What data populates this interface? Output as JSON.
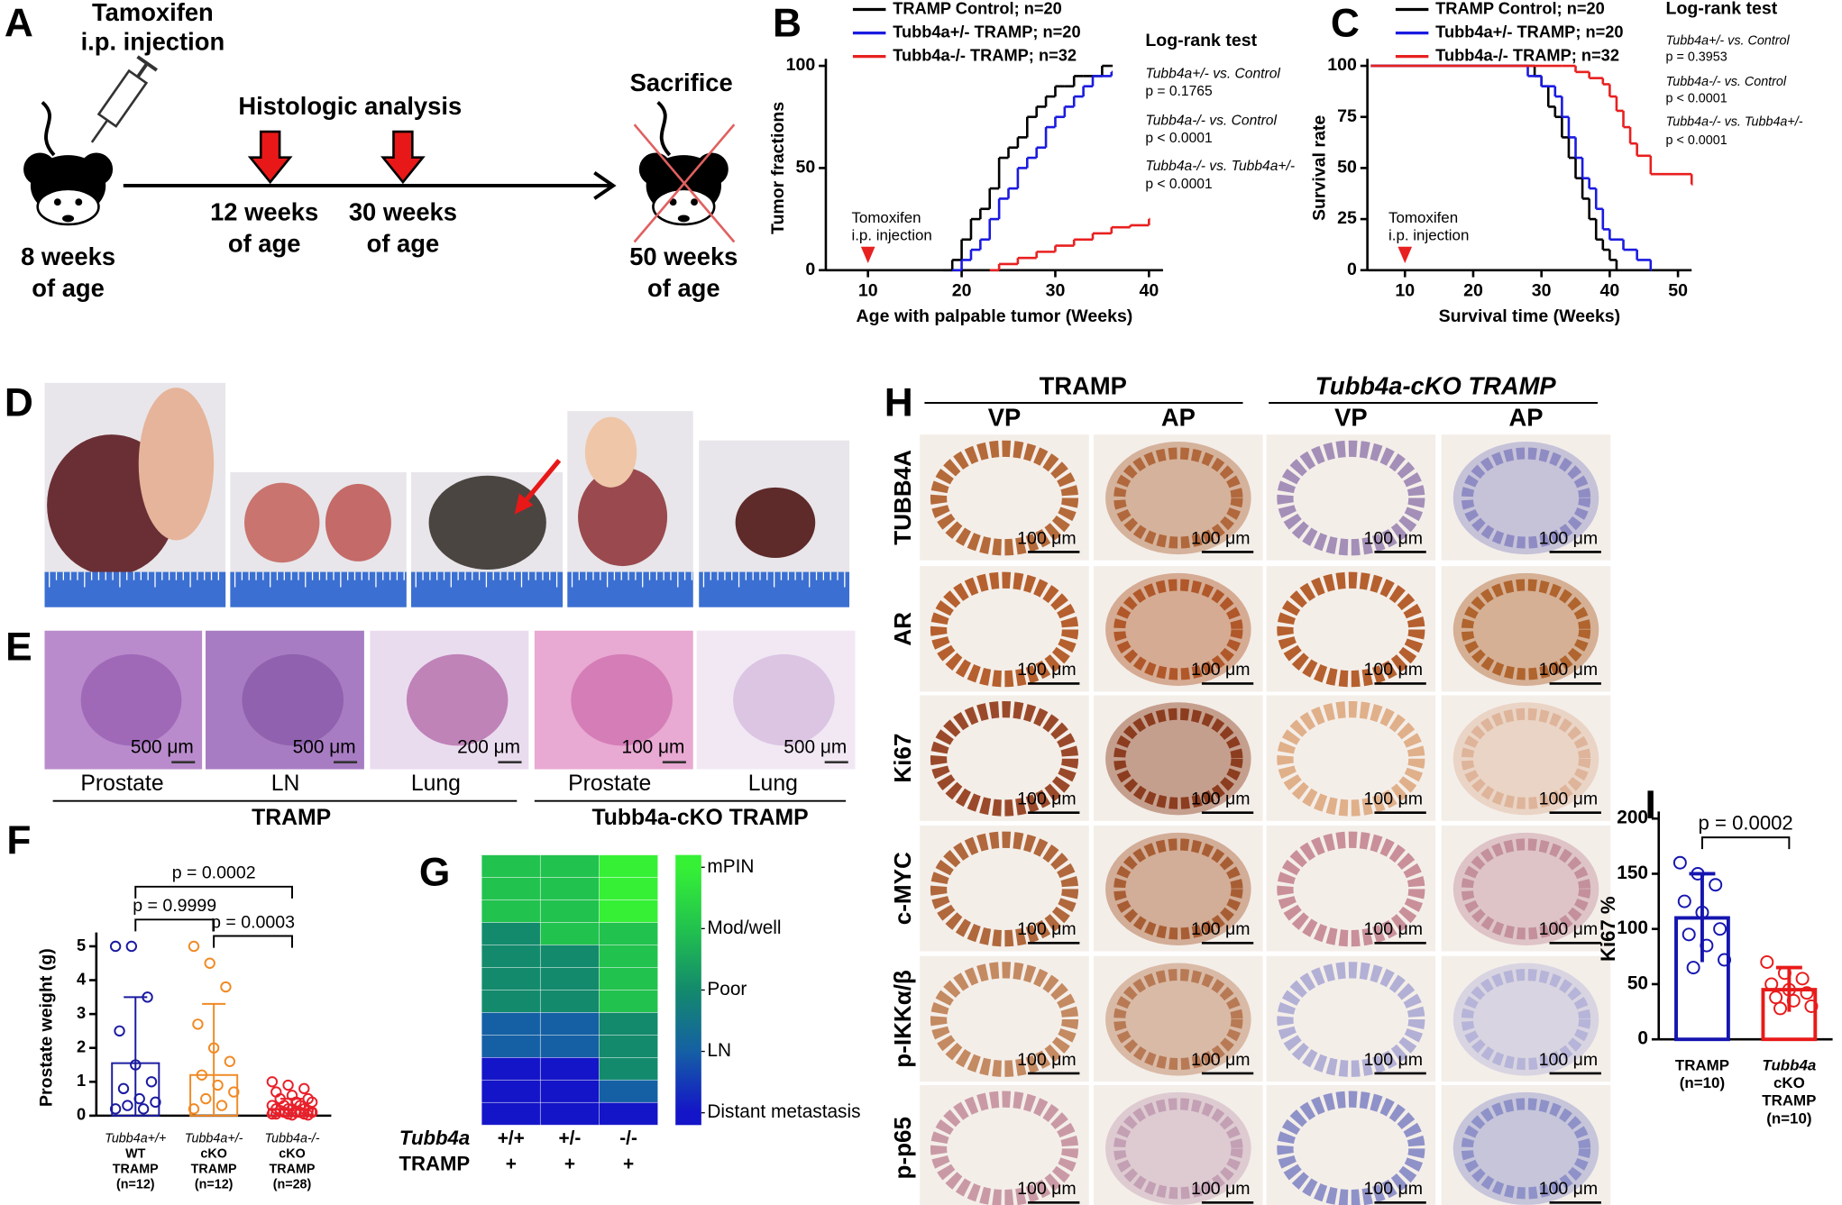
{
  "panels": {
    "letters": [
      "A",
      "B",
      "C",
      "D",
      "E",
      "F",
      "G",
      "H",
      "I"
    ]
  },
  "timeline": {
    "injection": [
      "Tamoxifen",
      "i.p. injection"
    ],
    "analysis": "Histologic analysis",
    "sacrifice": "Sacrifice",
    "start": [
      "8 weeks",
      "of age"
    ],
    "point1": [
      "12 weeks",
      "of age"
    ],
    "point2": [
      "30 weeks",
      "of age"
    ],
    "end": [
      "50 weeks",
      "of age"
    ]
  },
  "histology": {
    "scale_bars": [
      "500 μm",
      "500 μm",
      "200 μm",
      "100 μm",
      "500 μm"
    ],
    "tissues": [
      "Prostate",
      "LN",
      "Lung",
      "Prostate",
      "Lung"
    ],
    "groups": [
      "TRAMP",
      "Tubb4a-cKO TRAMP"
    ]
  },
  "ihc": {
    "groups": [
      "TRAMP",
      "Tubb4a-cKO TRAMP"
    ],
    "columns": [
      "VP",
      "AP",
      "VP",
      "AP"
    ],
    "rows": [
      "TUBB4A",
      "AR",
      "Ki67",
      "c-MYC",
      "p-IKKα/β",
      "p-p65"
    ],
    "scale_bar": "100 μm"
  },
  "chart_data": [
    {
      "type": "line",
      "step": true,
      "xlabel": "Age with palpable tumor (Weeks)",
      "ylabel": "Tumor fractions",
      "xlim": [
        5.5,
        41.5
      ],
      "xticks": [
        10,
        20,
        30,
        40
      ],
      "ylim": [
        0,
        100
      ],
      "yticks": [
        0,
        50,
        100
      ],
      "series": [
        {
          "name": "TRAMP Control; n=20",
          "color": "#000000",
          "x": [
            18,
            19,
            20,
            21,
            22,
            23,
            24,
            25,
            26,
            27,
            28,
            29,
            30,
            31,
            32,
            33,
            34,
            35,
            36
          ],
          "values": [
            0,
            5,
            15,
            25,
            30,
            40,
            55,
            60,
            65,
            75,
            80,
            85,
            90,
            90,
            95,
            95,
            95,
            100,
            100
          ]
        },
        {
          "name": "Tubb4a+/- TRAMP; n=20",
          "color": "#1a1ae0",
          "x": [
            19,
            20,
            21,
            22,
            23,
            24,
            25,
            26,
            27,
            28,
            29,
            30,
            31,
            32,
            33,
            34,
            35,
            36
          ],
          "values": [
            0,
            5,
            10,
            15,
            25,
            35,
            40,
            50,
            55,
            60,
            70,
            75,
            80,
            85,
            90,
            95,
            95,
            97
          ]
        },
        {
          "name": "Tubb4a-/- TRAMP; n=32",
          "color": "#e82020",
          "x": [
            23,
            24,
            26,
            28,
            30,
            32,
            34,
            36,
            38,
            40
          ],
          "values": [
            0,
            3,
            6,
            9,
            12,
            15,
            18,
            21,
            22,
            25
          ]
        }
      ],
      "annotations": {
        "title": "Log-rank test",
        "lines": [
          "Tubb4a+/- vs. Control",
          "p = 0.1765",
          "Tubb4a-/- vs. Control",
          "p < 0.0001",
          "Tubb4a-/- vs. Tubb4a+/-",
          "p < 0.0001"
        ]
      },
      "event": {
        "x": 10,
        "color": "#e82020",
        "label": [
          "Tomoxifen",
          "i.p. injection"
        ]
      }
    },
    {
      "type": "line",
      "step": true,
      "xlabel": "Survival time (Weeks)",
      "ylabel": "Survival rate",
      "xlim": [
        4.5,
        52
      ],
      "xticks": [
        10,
        20,
        30,
        40,
        50
      ],
      "ylim": [
        0,
        100
      ],
      "yticks": [
        0,
        25,
        50,
        75,
        100
      ],
      "series": [
        {
          "name": "TRAMP Control; n=20",
          "color": "#000000",
          "x": [
            5,
            27,
            29,
            30,
            31,
            32,
            33,
            34,
            35,
            36,
            37,
            38,
            39,
            40,
            41
          ],
          "values": [
            100,
            100,
            95,
            90,
            80,
            75,
            65,
            55,
            45,
            35,
            25,
            15,
            10,
            5,
            0
          ]
        },
        {
          "name": "Tubb4a+/- TRAMP; n=20",
          "color": "#1a1ae0",
          "x": [
            5,
            27,
            28,
            30,
            32,
            33,
            34,
            35,
            36,
            37,
            38,
            39,
            40,
            42,
            44,
            46
          ],
          "values": [
            100,
            100,
            95,
            90,
            85,
            75,
            65,
            55,
            45,
            40,
            30,
            20,
            15,
            10,
            5,
            0
          ]
        },
        {
          "name": "Tubb4a-/- TRAMP; n=32",
          "color": "#e82020",
          "x": [
            5,
            33,
            35,
            37,
            39,
            40,
            41,
            42,
            43,
            44,
            46,
            52
          ],
          "values": [
            100,
            100,
            97,
            94,
            91,
            85,
            78,
            70,
            62,
            56,
            47,
            42
          ]
        }
      ],
      "annotations": {
        "title": "Log-rank test",
        "lines": [
          "Tubb4a+/- vs. Control",
          "p = 0.3953",
          "Tubb4a-/- vs. Control",
          "p < 0.0001",
          "Tubb4a-/- vs. Tubb4a+/-",
          "p < 0.0001"
        ]
      },
      "event": {
        "x": 10,
        "color": "#e82020",
        "label": [
          "Tomoxifen",
          "i.p. injection"
        ]
      }
    },
    {
      "type": "bar",
      "ylabel": "Prostate weight (g)",
      "categories": [
        [
          "Tubb4a+/+",
          "WT",
          "TRAMP",
          "(n=12)"
        ],
        [
          "Tubb4a+/-",
          "cKO",
          "TRAMP",
          "(n=12)"
        ],
        [
          "Tubb4a-/-",
          "cKO",
          "TRAMP",
          "(n=28)"
        ]
      ],
      "colors": [
        "#1a1aa0",
        "#f08a24",
        "#e8202a"
      ],
      "values": [
        1.55,
        1.2,
        0.2
      ],
      "errors": [
        1.95,
        2.1,
        0.3
      ],
      "points": [
        [
          5,
          5,
          3.5,
          2.5,
          1.5,
          1,
          0.8,
          0.5,
          0.4,
          0.3,
          0.2,
          0.2
        ],
        [
          5,
          4.5,
          3.8,
          2.7,
          2,
          1.6,
          1.2,
          0.9,
          0.7,
          0.5,
          0.3,
          0.2
        ],
        [
          1.0,
          0.9,
          0.8,
          0.7,
          0.6,
          0.5,
          0.5,
          0.4,
          0.4,
          0.3,
          0.3,
          0.3,
          0.2,
          0.2,
          0.2,
          0.2,
          0.15,
          0.15,
          0.1,
          0.1,
          0.1,
          0.1,
          0.05,
          0.05,
          0.05,
          0.05,
          0.02,
          0.02
        ]
      ],
      "ylim": [
        0,
        5.2
      ],
      "yticks": [
        0,
        1,
        2,
        3,
        4,
        5
      ],
      "comparisons": [
        {
          "pair": [
            0,
            2
          ],
          "label": "p = 0.0002"
        },
        {
          "pair": [
            0,
            1
          ],
          "label": "p = 0.9999"
        },
        {
          "pair": [
            1,
            2
          ],
          "label": "p = 0.0003"
        }
      ]
    },
    {
      "type": "heatmap",
      "row_labels": [
        "Tubb4a",
        "TRAMP"
      ],
      "column_labels": [
        [
          "+/+",
          "+/-",
          "-/-"
        ],
        [
          "+",
          "+",
          "+"
        ]
      ],
      "values": [
        [
          4,
          4,
          4,
          3,
          3,
          3,
          3,
          2,
          2,
          1,
          1,
          1
        ],
        [
          4,
          4,
          4,
          4,
          3,
          3,
          3,
          2,
          2,
          1,
          1,
          1
        ],
        [
          5,
          5,
          5,
          4,
          4,
          4,
          4,
          3,
          3,
          3,
          2,
          1
        ]
      ],
      "colors": [
        "#1414c8",
        "#1560a4",
        "#138a6c",
        "#22c24e",
        "#36f036"
      ],
      "zlim": [
        0.8,
        5.2
      ],
      "zticks": [
        {
          "value": 5,
          "label": "mPIN"
        },
        {
          "value": 4,
          "label": "Mod/well"
        },
        {
          "value": 3,
          "label": "Poor"
        },
        {
          "value": 2,
          "label": "LN"
        },
        {
          "value": 1,
          "label": "Distant metastasis"
        }
      ]
    },
    {
      "type": "bar",
      "ylabel": "Ki67 %",
      "categories": [
        [
          "TRAMP",
          "(n=10)"
        ],
        [
          "Tubb4a",
          "cKO",
          "TRAMP",
          "(n=10)"
        ]
      ],
      "colors": [
        "#1515b0",
        "#e81a1a"
      ],
      "values": [
        110,
        45
      ],
      "errors": [
        40,
        20
      ],
      "points": [
        [
          160,
          150,
          140,
          125,
          115,
          100,
          95,
          85,
          72,
          65
        ],
        [
          70,
          60,
          55,
          50,
          45,
          42,
          38,
          35,
          30,
          28
        ]
      ],
      "ylim": [
        0,
        200
      ],
      "yticks": [
        0,
        50,
        100,
        150,
        200
      ],
      "comparisons": [
        {
          "pair": [
            0,
            1
          ],
          "label": "p = 0.0002"
        }
      ]
    }
  ]
}
